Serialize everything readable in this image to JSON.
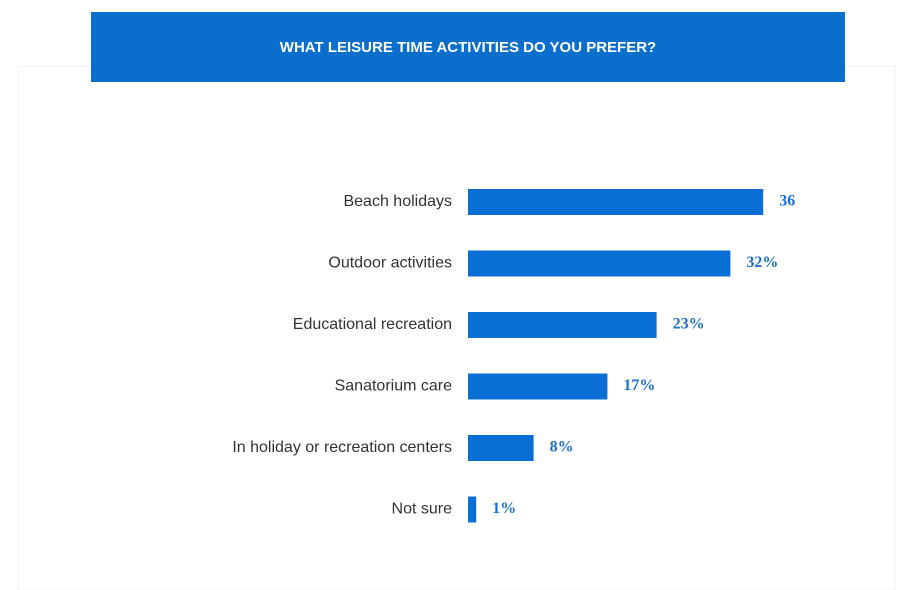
{
  "chart_data": {
    "type": "bar",
    "orientation": "horizontal",
    "title": "WHAT LEISURE TIME ACTIVITIES DO YOU PREFER?",
    "categories": [
      "Beach holidays",
      "Outdoor activities",
      "Educational recreation",
      "Sanatorium care",
      "In holiday or recreation centers",
      "Not sure"
    ],
    "values": [
      36,
      32,
      23,
      17,
      8,
      1
    ],
    "value_labels": [
      "36",
      "32%",
      "23%",
      "17%",
      "8%",
      "1%"
    ],
    "color": "#0a6fd4"
  }
}
